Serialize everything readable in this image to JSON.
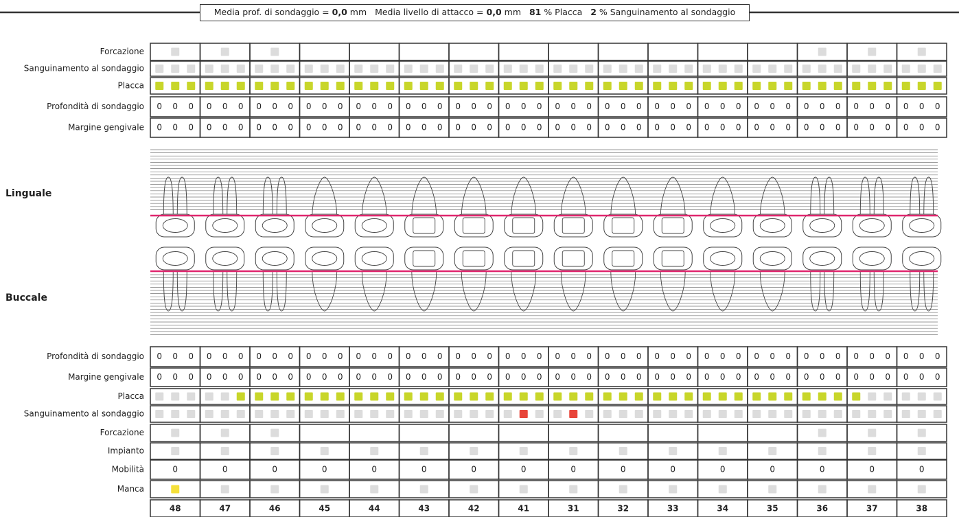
{
  "header": {
    "probing_label": "Media prof. di sondaggio =",
    "probing_value": "0,0",
    "probing_unit": "mm",
    "attachment_label": "Media livello di attacco =",
    "attachment_value": "0,0",
    "attachment_unit": "mm",
    "plaque_value": 81,
    "plaque_label": "% Placca",
    "bleeding_value": 2,
    "bleeding_label": "% Sanguinamento al sondaggio"
  },
  "sides": {
    "lingual": "Linguale",
    "buccal": "Buccale"
  },
  "teeth": [
    48,
    47,
    46,
    45,
    44,
    43,
    42,
    41,
    31,
    32,
    33,
    34,
    35,
    36,
    37,
    38
  ],
  "colors": {
    "empty": "#dcdcdc",
    "plaque": "#c8d62a",
    "bleeding": "#e8453a",
    "missing": "#f5e03a",
    "gum_line": "#e0266e"
  },
  "upper": {
    "rows": [
      {
        "label": "Forcazione",
        "kind": "tooth-square",
        "values": [
          false,
          false,
          false,
          null,
          null,
          null,
          null,
          null,
          null,
          null,
          null,
          null,
          null,
          false,
          false,
          false
        ]
      },
      {
        "label": "Sanguinamento al sondaggio",
        "kind": "site-square",
        "on_color": "bleeding",
        "values": [
          [
            false,
            false,
            false
          ],
          [
            false,
            false,
            false
          ],
          [
            false,
            false,
            false
          ],
          [
            false,
            false,
            false
          ],
          [
            false,
            false,
            false
          ],
          [
            false,
            false,
            false
          ],
          [
            false,
            false,
            false
          ],
          [
            false,
            false,
            false
          ],
          [
            false,
            false,
            false
          ],
          [
            false,
            false,
            false
          ],
          [
            false,
            false,
            false
          ],
          [
            false,
            false,
            false
          ],
          [
            false,
            false,
            false
          ],
          [
            false,
            false,
            false
          ],
          [
            false,
            false,
            false
          ],
          [
            false,
            false,
            false
          ]
        ]
      },
      {
        "label": "Placca",
        "kind": "site-square",
        "on_color": "plaque",
        "values": [
          [
            true,
            true,
            true
          ],
          [
            true,
            true,
            true
          ],
          [
            true,
            true,
            true
          ],
          [
            true,
            true,
            true
          ],
          [
            true,
            true,
            true
          ],
          [
            true,
            true,
            true
          ],
          [
            true,
            true,
            true
          ],
          [
            true,
            true,
            true
          ],
          [
            true,
            true,
            true
          ],
          [
            true,
            true,
            true
          ],
          [
            true,
            true,
            true
          ],
          [
            true,
            true,
            true
          ],
          [
            true,
            true,
            true
          ],
          [
            true,
            true,
            true
          ],
          [
            true,
            true,
            true
          ],
          [
            true,
            true,
            true
          ]
        ]
      },
      {
        "label": "Profondità di sondaggio",
        "kind": "site-number",
        "values": [
          [
            0,
            0,
            0
          ],
          [
            0,
            0,
            0
          ],
          [
            0,
            0,
            0
          ],
          [
            0,
            0,
            0
          ],
          [
            0,
            0,
            0
          ],
          [
            0,
            0,
            0
          ],
          [
            0,
            0,
            0
          ],
          [
            0,
            0,
            0
          ],
          [
            0,
            0,
            0
          ],
          [
            0,
            0,
            0
          ],
          [
            0,
            0,
            0
          ],
          [
            0,
            0,
            0
          ],
          [
            0,
            0,
            0
          ],
          [
            0,
            0,
            0
          ],
          [
            0,
            0,
            0
          ],
          [
            0,
            0,
            0
          ]
        ]
      },
      {
        "label": "Margine gengivale",
        "kind": "site-number",
        "values": [
          [
            0,
            0,
            0
          ],
          [
            0,
            0,
            0
          ],
          [
            0,
            0,
            0
          ],
          [
            0,
            0,
            0
          ],
          [
            0,
            0,
            0
          ],
          [
            0,
            0,
            0
          ],
          [
            0,
            0,
            0
          ],
          [
            0,
            0,
            0
          ],
          [
            0,
            0,
            0
          ],
          [
            0,
            0,
            0
          ],
          [
            0,
            0,
            0
          ],
          [
            0,
            0,
            0
          ],
          [
            0,
            0,
            0
          ],
          [
            0,
            0,
            0
          ],
          [
            0,
            0,
            0
          ],
          [
            0,
            0,
            0
          ]
        ]
      }
    ]
  },
  "lower": {
    "rows": [
      {
        "label": "Profondità di sondaggio",
        "kind": "site-number",
        "values": [
          [
            0,
            0,
            0
          ],
          [
            0,
            0,
            0
          ],
          [
            0,
            0,
            0
          ],
          [
            0,
            0,
            0
          ],
          [
            0,
            0,
            0
          ],
          [
            0,
            0,
            0
          ],
          [
            0,
            0,
            0
          ],
          [
            0,
            0,
            0
          ],
          [
            0,
            0,
            0
          ],
          [
            0,
            0,
            0
          ],
          [
            0,
            0,
            0
          ],
          [
            0,
            0,
            0
          ],
          [
            0,
            0,
            0
          ],
          [
            0,
            0,
            0
          ],
          [
            0,
            0,
            0
          ],
          [
            0,
            0,
            0
          ]
        ]
      },
      {
        "label": "Margine gengivale",
        "kind": "site-number",
        "values": [
          [
            0,
            0,
            0
          ],
          [
            0,
            0,
            0
          ],
          [
            0,
            0,
            0
          ],
          [
            0,
            0,
            0
          ],
          [
            0,
            0,
            0
          ],
          [
            0,
            0,
            0
          ],
          [
            0,
            0,
            0
          ],
          [
            0,
            0,
            0
          ],
          [
            0,
            0,
            0
          ],
          [
            0,
            0,
            0
          ],
          [
            0,
            0,
            0
          ],
          [
            0,
            0,
            0
          ],
          [
            0,
            0,
            0
          ],
          [
            0,
            0,
            0
          ],
          [
            0,
            0,
            0
          ],
          [
            0,
            0,
            0
          ]
        ]
      },
      {
        "label": "Placca",
        "kind": "site-square",
        "on_color": "plaque",
        "values": [
          [
            false,
            false,
            false
          ],
          [
            false,
            false,
            true
          ],
          [
            true,
            true,
            true
          ],
          [
            true,
            true,
            true
          ],
          [
            true,
            true,
            true
          ],
          [
            true,
            true,
            true
          ],
          [
            true,
            true,
            true
          ],
          [
            true,
            true,
            true
          ],
          [
            true,
            true,
            true
          ],
          [
            true,
            true,
            true
          ],
          [
            true,
            true,
            true
          ],
          [
            true,
            true,
            true
          ],
          [
            true,
            true,
            true
          ],
          [
            true,
            true,
            true
          ],
          [
            true,
            false,
            false
          ],
          [
            false,
            false,
            false
          ]
        ]
      },
      {
        "label": "Sanguinamento al sondaggio",
        "kind": "site-square",
        "on_color": "bleeding",
        "values": [
          [
            false,
            false,
            false
          ],
          [
            false,
            false,
            false
          ],
          [
            false,
            false,
            false
          ],
          [
            false,
            false,
            false
          ],
          [
            false,
            false,
            false
          ],
          [
            false,
            false,
            false
          ],
          [
            false,
            false,
            false
          ],
          [
            false,
            true,
            false
          ],
          [
            false,
            true,
            false
          ],
          [
            false,
            false,
            false
          ],
          [
            false,
            false,
            false
          ],
          [
            false,
            false,
            false
          ],
          [
            false,
            false,
            false
          ],
          [
            false,
            false,
            false
          ],
          [
            false,
            false,
            false
          ],
          [
            false,
            false,
            false
          ]
        ]
      },
      {
        "label": "Forcazione",
        "kind": "tooth-square",
        "values": [
          false,
          false,
          false,
          null,
          null,
          null,
          null,
          null,
          null,
          null,
          null,
          null,
          null,
          false,
          false,
          false
        ]
      },
      {
        "label": "Impianto",
        "kind": "tooth-square",
        "values": [
          false,
          false,
          false,
          false,
          false,
          false,
          false,
          false,
          false,
          false,
          false,
          false,
          false,
          false,
          false,
          false
        ]
      },
      {
        "label": "Mobilità",
        "kind": "tooth-number",
        "values": [
          0,
          0,
          0,
          0,
          0,
          0,
          0,
          0,
          0,
          0,
          0,
          0,
          0,
          0,
          0,
          0
        ]
      },
      {
        "label": "Manca",
        "kind": "tooth-square",
        "on_color": "missing",
        "values": [
          true,
          false,
          false,
          false,
          false,
          false,
          false,
          false,
          false,
          false,
          false,
          false,
          false,
          false,
          false,
          false
        ]
      }
    ]
  }
}
